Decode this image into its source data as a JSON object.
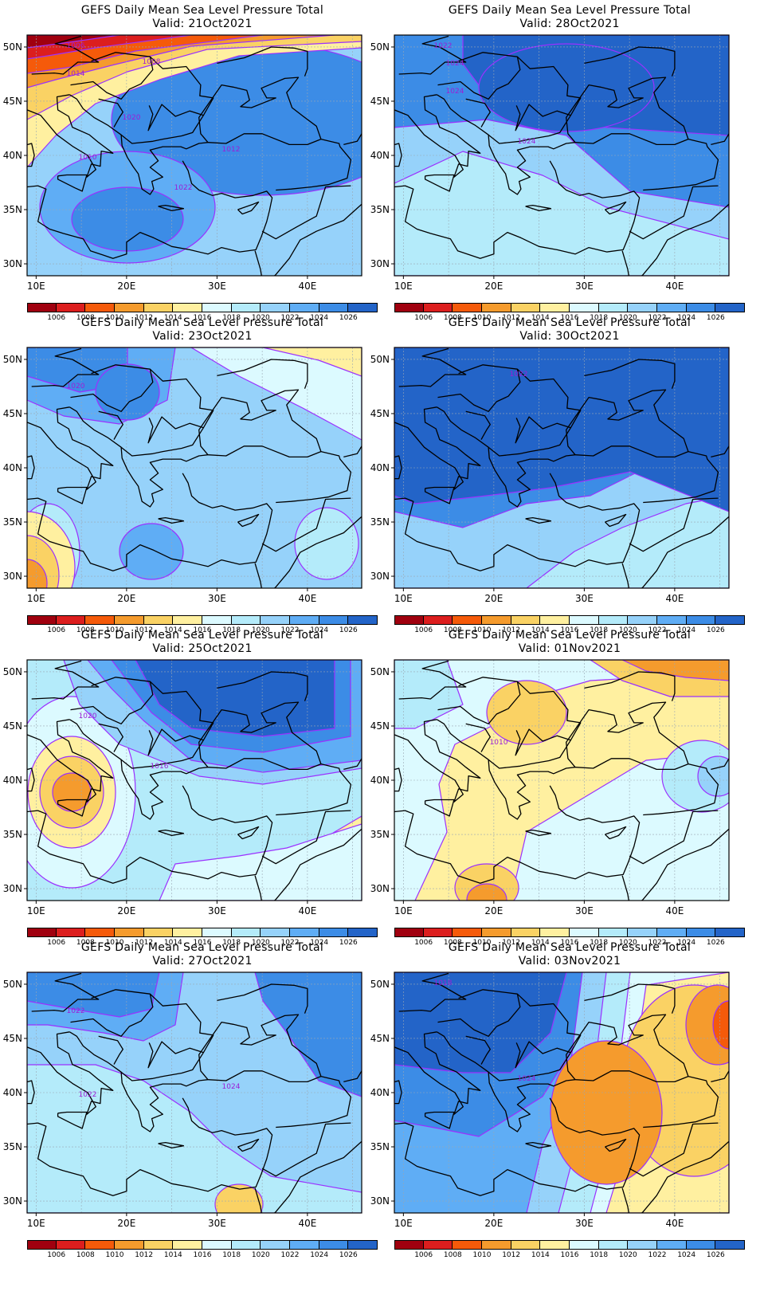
{
  "panels": [
    {
      "title": "GEFS Daily Mean Sea Level Pressure Total",
      "valid": "Valid: 21Oct2021",
      "pattern": "a",
      "contour_labels": [
        "1006",
        "1008",
        "1010",
        "1012",
        "1014",
        "1020",
        "1022"
      ]
    },
    {
      "title": "GEFS Daily Mean Sea Level Pressure Total",
      "valid": "Valid: 28Oct2021",
      "pattern": "b",
      "contour_labels": [
        "1024",
        "1024",
        "1024",
        "1022"
      ]
    },
    {
      "title": "GEFS Daily Mean Sea Level Pressure Total",
      "valid": "Valid: 23Oct2021",
      "pattern": "c",
      "contour_labels": [
        "1020"
      ]
    },
    {
      "title": "GEFS Daily Mean Sea Level Pressure Total",
      "valid": "Valid: 30Oct2021",
      "pattern": "d",
      "contour_labels": [
        "1022"
      ]
    },
    {
      "title": "GEFS Daily Mean Sea Level Pressure Total",
      "valid": "Valid: 25Oct2021",
      "pattern": "e",
      "contour_labels": [
        "1020",
        "1016"
      ]
    },
    {
      "title": "GEFS Daily Mean Sea Level Pressure Total",
      "valid": "Valid: 01Nov2021",
      "pattern": "f",
      "contour_labels": [
        "1010"
      ]
    },
    {
      "title": "GEFS Daily Mean Sea Level Pressure Total",
      "valid": "Valid: 27Oct2021",
      "pattern": "g",
      "contour_labels": [
        "1022",
        "1024",
        "1022"
      ]
    },
    {
      "title": "GEFS Daily Mean Sea Level Pressure Total",
      "valid": "Valid: 03Nov2021",
      "pattern": "h",
      "contour_labels": [
        "1024",
        "1018"
      ]
    }
  ],
  "lat_ticks": [
    "50N",
    "45N",
    "40N",
    "35N",
    "30N"
  ],
  "lon_ticks": [
    "10E",
    "20E",
    "30E",
    "40E"
  ],
  "colorbar": {
    "labels": [
      "1006",
      "1008",
      "1010",
      "1012",
      "1014",
      "1016",
      "1018",
      "1020",
      "1022",
      "1024",
      "1026"
    ],
    "colors": [
      "#a0000f",
      "#dc1e1e",
      "#f55a0a",
      "#f59b2d",
      "#fad264",
      "#fff0a0",
      "#dcfaff",
      "#b4ebfa",
      "#96d2fa",
      "#5fadf5",
      "#3c8ce6",
      "#2364c8"
    ]
  },
  "contour_color": "#9b30ff",
  "land_outline_color": "#000000"
}
